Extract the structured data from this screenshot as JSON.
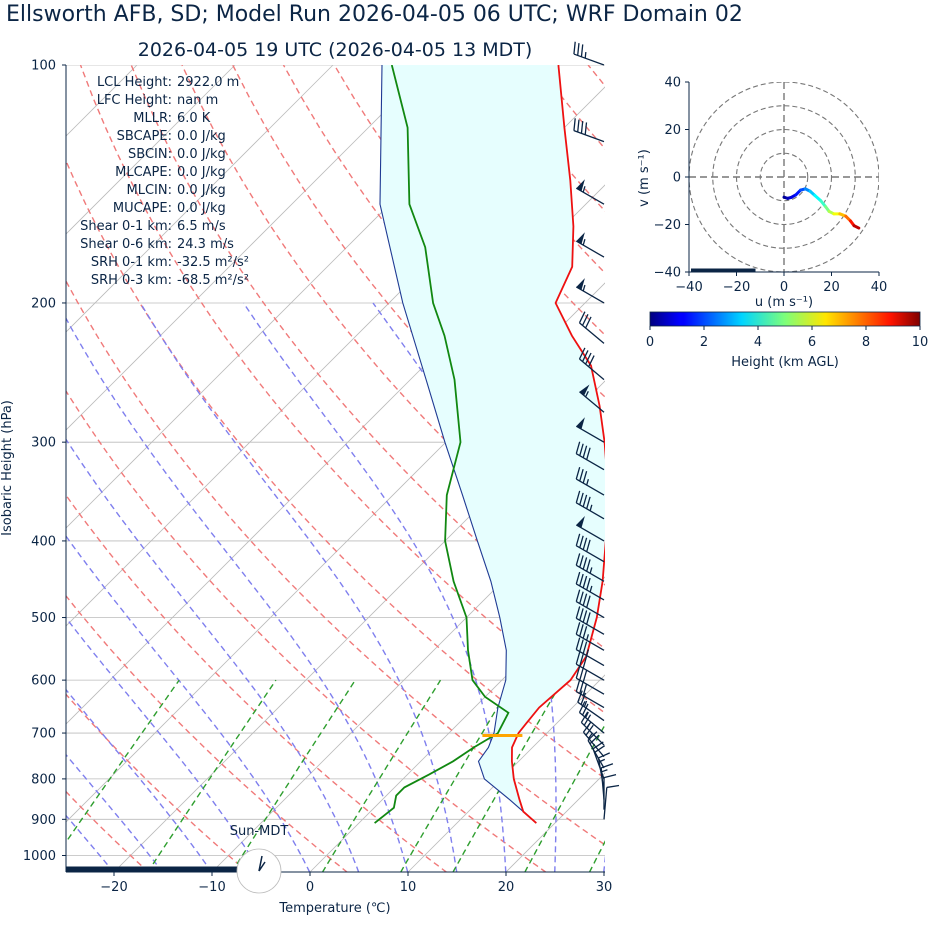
{
  "title": "Ellsworth AFB, SD; Model Run 2026-04-05 06 UTC; WRF Domain 02",
  "subtitle": "2026-04-05 19 UTC  (2026-04-05 13 MDT)",
  "colors": {
    "temperature": "#ee1111",
    "dewpoint": "#118811",
    "parcel_fill": "#e6fefe",
    "dry_adiabat": "#f07a7a",
    "moist_adiabat": "#7f7fee",
    "mixing_ratio": "#2e9e2e",
    "isotherm": "#bbbbbb",
    "lcl_marker": "#ffa500",
    "barb": "#0b2545"
  },
  "annotations": [
    {
      "label": "LCL Height:",
      "value": "2922.0 m"
    },
    {
      "label": "LFC Height:",
      "value": "nan m"
    },
    {
      "label": "MLLR:",
      "value": "6.0 K"
    },
    {
      "label": "SBCAPE:",
      "value": "0.0 J/kg"
    },
    {
      "label": "SBCIN:",
      "value": "0.0 J/kg"
    },
    {
      "label": "MLCAPE:",
      "value": "0.0 J/kg"
    },
    {
      "label": "MLCIN:",
      "value": "0.0 J/kg"
    },
    {
      "label": "MUCAPE:",
      "value": "0.0 J/kg"
    },
    {
      "label": "Shear 0-1 km:",
      "value": "6.5 m/s"
    },
    {
      "label": "Shear 0-6 km:",
      "value": "24.3 m/s"
    },
    {
      "label": "SRH 0-1 km:",
      "value": "-32.5 m²/s²"
    },
    {
      "label": "SRH 0-3 km:",
      "value": "-68.5 m²/s²"
    }
  ],
  "sun_label": "Sun-MDT",
  "chart_data": [
    {
      "type": "line",
      "name": "skew-t",
      "xlabel": "Temperature (℃)",
      "ylabel": "Isobaric Height (hPa)",
      "xlim": [
        -25,
        30
      ],
      "ylim": [
        1050,
        100
      ],
      "y_scale": "log",
      "grid": true,
      "xticks": [
        -20,
        -10,
        0,
        10,
        20,
        30
      ],
      "yticks": [
        100,
        200,
        300,
        400,
        500,
        600,
        700,
        800,
        900,
        1000
      ],
      "series": [
        {
          "role": "temperature",
          "points": [
            [
              910,
              18.1
            ],
            [
              880,
              15.6
            ],
            [
              850,
              14.0
            ],
            [
              800,
              11.3
            ],
            [
              760,
              9.3
            ],
            [
              730,
              7.9
            ],
            [
              700,
              7.1
            ],
            [
              680,
              6.9
            ],
            [
              650,
              6.6
            ],
            [
              600,
              7.0
            ],
            [
              560,
              6.2
            ],
            [
              500,
              3.3
            ],
            [
              450,
              0.2
            ],
            [
              400,
              -3.6
            ],
            [
              350,
              -8.0
            ],
            [
              300,
              -13.8
            ],
            [
              270,
              -18.0
            ],
            [
              240,
              -23.0
            ],
            [
              220,
              -28.0
            ],
            [
              200,
              -33.0
            ],
            [
              180,
              -35.0
            ],
            [
              160,
              -39.0
            ],
            [
              140,
              -44.0
            ],
            [
              120,
              -50.0
            ],
            [
              100,
              -57.0
            ]
          ]
        },
        {
          "role": "dewpoint",
          "points": [
            [
              910,
              1.6
            ],
            [
              870,
              2.0
            ],
            [
              840,
              1.0
            ],
            [
              820,
              1.0
            ],
            [
              790,
              2.2
            ],
            [
              760,
              3.3
            ],
            [
              730,
              4.0
            ],
            [
              700,
              5.0
            ],
            [
              660,
              4.0
            ],
            [
              630,
              0.0
            ],
            [
              600,
              -3.0
            ],
            [
              550,
              -6.5
            ],
            [
              500,
              -10.0
            ],
            [
              450,
              -15.0
            ],
            [
              400,
              -20.0
            ],
            [
              350,
              -24.5
            ],
            [
              300,
              -28.5
            ],
            [
              250,
              -35.5
            ],
            [
              220,
              -41.0
            ],
            [
              200,
              -45.5
            ],
            [
              170,
              -52.0
            ],
            [
              150,
              -58.0
            ],
            [
              120,
              -66.0
            ],
            [
              100,
              -74.0
            ]
          ]
        },
        {
          "role": "parcel",
          "points": [
            [
              910,
              18.1
            ],
            [
              850,
              13.0
            ],
            [
              800,
              8.3
            ],
            [
              760,
              5.9
            ],
            [
              730,
              5.5
            ],
            [
              700,
              4.6
            ],
            [
              650,
              2.4
            ],
            [
              600,
              0.4
            ],
            [
              550,
              -2.6
            ],
            [
              500,
              -6.6
            ],
            [
              450,
              -11.2
            ],
            [
              400,
              -16.7
            ],
            [
              350,
              -22.9
            ],
            [
              300,
              -30.1
            ],
            [
              250,
              -38.4
            ],
            [
              200,
              -48.6
            ],
            [
              150,
              -61.0
            ],
            [
              100,
              -75.0
            ]
          ]
        }
      ],
      "lcl_pressure": 705,
      "wind_barbs": [
        {
          "p": 100,
          "kt": 35,
          "dir": 290
        },
        {
          "p": 125,
          "kt": 40,
          "dir": 290
        },
        {
          "p": 150,
          "kt": 55,
          "dir": 300
        },
        {
          "p": 175,
          "kt": 55,
          "dir": 300
        },
        {
          "p": 200,
          "kt": 55,
          "dir": 300
        },
        {
          "p": 225,
          "kt": 30,
          "dir": 310
        },
        {
          "p": 250,
          "kt": 40,
          "dir": 310
        },
        {
          "p": 275,
          "kt": 55,
          "dir": 310
        },
        {
          "p": 300,
          "kt": 50,
          "dir": 300
        },
        {
          "p": 325,
          "kt": 40,
          "dir": 300
        },
        {
          "p": 350,
          "kt": 35,
          "dir": 300
        },
        {
          "p": 375,
          "kt": 45,
          "dir": 300
        },
        {
          "p": 400,
          "kt": 50,
          "dir": 300
        },
        {
          "p": 425,
          "kt": 40,
          "dir": 300
        },
        {
          "p": 450,
          "kt": 45,
          "dir": 300
        },
        {
          "p": 475,
          "kt": 45,
          "dir": 300
        },
        {
          "p": 500,
          "kt": 40,
          "dir": 300
        },
        {
          "p": 525,
          "kt": 40,
          "dir": 300
        },
        {
          "p": 550,
          "kt": 35,
          "dir": 300
        },
        {
          "p": 575,
          "kt": 35,
          "dir": 300
        },
        {
          "p": 600,
          "kt": 30,
          "dir": 300
        },
        {
          "p": 625,
          "kt": 30,
          "dir": 300
        },
        {
          "p": 650,
          "kt": 30,
          "dir": 300
        },
        {
          "p": 675,
          "kt": 25,
          "dir": 305
        },
        {
          "p": 700,
          "kt": 25,
          "dir": 310
        },
        {
          "p": 725,
          "kt": 25,
          "dir": 315
        },
        {
          "p": 750,
          "kt": 25,
          "dir": 320
        },
        {
          "p": 775,
          "kt": 20,
          "dir": 330
        },
        {
          "p": 800,
          "kt": 20,
          "dir": 340
        },
        {
          "p": 825,
          "kt": 15,
          "dir": 350
        },
        {
          "p": 850,
          "kt": 15,
          "dir": 355
        },
        {
          "p": 875,
          "kt": 10,
          "dir": 0
        },
        {
          "p": 900,
          "kt": 10,
          "dir": 5
        }
      ]
    },
    {
      "type": "line",
      "name": "hodograph",
      "xlabel": "u (m s⁻¹)",
      "ylabel": "v (m s⁻¹)",
      "xlim": [
        -40,
        40
      ],
      "ylim": [
        -40,
        40
      ],
      "xticks": [
        -40,
        -20,
        0,
        20,
        40
      ],
      "yticks": [
        -40,
        -20,
        0,
        20,
        40
      ],
      "rings": [
        10,
        20,
        30,
        40
      ],
      "colorbar": {
        "label": "Height (km AGL)",
        "min": 0,
        "max": 10,
        "ticks": [
          0,
          2,
          4,
          6,
          8,
          10
        ],
        "colormap": "jet"
      },
      "points": [
        [
          0,
          -8.5,
          0.1
        ],
        [
          1.5,
          -9.0,
          0.4
        ],
        [
          3.0,
          -8.6,
          0.8
        ],
        [
          5.0,
          -7.5,
          1.2
        ],
        [
          7.0,
          -5.5,
          1.7
        ],
        [
          9.0,
          -5.0,
          2.3
        ],
        [
          11.0,
          -6.0,
          2.9
        ],
        [
          13.0,
          -7.8,
          3.5
        ],
        [
          15.5,
          -10.0,
          4.0
        ],
        [
          17.5,
          -12.5,
          4.6
        ],
        [
          19.0,
          -14.5,
          5.2
        ],
        [
          21.0,
          -15.5,
          5.8
        ],
        [
          23.5,
          -15.5,
          6.5
        ],
        [
          26.0,
          -16.5,
          7.3
        ],
        [
          28.0,
          -18.5,
          8.1
        ],
        [
          29.5,
          -20.5,
          9.0
        ],
        [
          31.5,
          -21.5,
          9.8
        ]
      ]
    }
  ]
}
